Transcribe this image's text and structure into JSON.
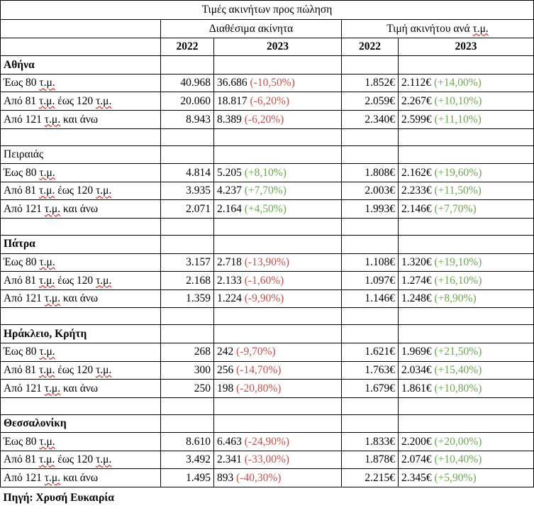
{
  "title": "Τιμές ακινήτων προς πώληση",
  "headers": {
    "available": "Διαθέσιμα ακίνητα",
    "price_per_sqm": "Τιμή ακινήτου ανά τ.μ.",
    "y2022": "2022",
    "y2023": "2023"
  },
  "colors": {
    "negative": "#c0504d",
    "positive": "#6aa84f"
  },
  "cities": [
    {
      "name": "Αθήνα",
      "bold": true,
      "rows": [
        {
          "label": "Έως 80 τ.μ.",
          "a2022": "40.968",
          "a2023": "36.686",
          "a_change": "(-10,50%)",
          "p2022": "1.852€",
          "p2023": "2.112€",
          "p_change": "(+14,00%)"
        },
        {
          "label": "Από 81 τ.μ. έως 120 τ.μ.",
          "a2022": "20.060",
          "a2023": "18.817",
          "a_change": "(-6,20%)",
          "p2022": "2.059€",
          "p2023": "2.267€",
          "p_change": "(+10,10%)"
        },
        {
          "label": "Από 121 τ.μ. και άνω",
          "a2022": "8.943",
          "a2023": "8.389",
          "a_change": "(-6,20%)",
          "p2022": "2.340€",
          "p2023": "2.599€",
          "p_change": "(+11,10%)"
        }
      ]
    },
    {
      "name": "Πειραιάς",
      "bold": false,
      "rows": [
        {
          "label": "Έως 80 τ.μ.",
          "a2022": "4.814",
          "a2023": "5.205",
          "a_change": "(+8,10%)",
          "p2022": "1.808€",
          "p2023": "2.162€",
          "p_change": "(+19,60%)"
        },
        {
          "label": "Από 81 τ.μ. έως 120 τ.μ.",
          "a2022": "3.935",
          "a2023": "4.237",
          "a_change": "(+7,70%)",
          "p2022": "2.003€",
          "p2023": "2.233€",
          "p_change": "(+11,50%)"
        },
        {
          "label": "Από 121 τ.μ. και άνω",
          "a2022": "2.071",
          "a2023": "2.164",
          "a_change": "(+4,50%)",
          "p2022": "1.993€",
          "p2023": "2.146€",
          "p_change": "(+7,70%)"
        }
      ]
    },
    {
      "name": "Πάτρα",
      "bold": true,
      "rows": [
        {
          "label": "Έως 80 τ.μ.",
          "a2022": "3.157",
          "a2023": "2.718",
          "a_change": "(-13,90%)",
          "p2022": "1.108€",
          "p2023": "1.320€",
          "p_change": "(+19,10%)"
        },
        {
          "label": "Από 81 τ.μ. έως 120 τ.μ.",
          "a2022": "2.168",
          "a2023": "2.133",
          "a_change": "(-1,60%)",
          "p2022": "1.097€",
          "p2023": "1.274€",
          "p_change": "(+16,10%)"
        },
        {
          "label": "Από 121 τ.μ. και άνω",
          "a2022": "1.359",
          "a2023": "1.224",
          "a_change": "(-9,90%)",
          "p2022": "1.146€",
          "p2023": "1.248€",
          "p_change": "(+8,90%)"
        }
      ]
    },
    {
      "name": "Ηράκλειο, Κρήτη",
      "bold": true,
      "rows": [
        {
          "label": "Έως 80 τ.μ.",
          "a2022": "268",
          "a2023": "242",
          "a_change": "(-9,70%)",
          "p2022": "1.621€",
          "p2023": "1.969€",
          "p_change": "(+21,50%)"
        },
        {
          "label": "Από 81 τ.μ. έως 120 τ.μ.",
          "a2022": "300",
          "a2023": "256",
          "a_change": "(-14,70%)",
          "p2022": "1.763€",
          "p2023": "2.034€",
          "p_change": "(+15,40%)"
        },
        {
          "label": "Από 121 τ.μ. και άνω",
          "a2022": "250",
          "a2023": "198",
          "a_change": "(-20,80%)",
          "p2022": "1.679€",
          "p2023": "1.861€",
          "p_change": "(+10,80%)"
        }
      ]
    },
    {
      "name": "Θεσσαλονίκη",
      "bold": true,
      "rows": [
        {
          "label": "Έως 80 τ.μ.",
          "a2022": "8.610",
          "a2023": "6.463",
          "a_change": "(-24,90%)",
          "p2022": "1.833€",
          "p2023": "2.200€",
          "p_change": "(+20,00%)"
        },
        {
          "label": "Από 81 τ.μ. έως 120 τ.μ.",
          "a2022": "3.492",
          "a2023": "2.341",
          "a_change": "(-33,00%)",
          "p2022": "1.878€",
          "p2023": "2.074€",
          "p_change": "(+10,40%)"
        },
        {
          "label": "Από 121 τ.μ. και άνω",
          "a2022": "1.495",
          "a2023": "893",
          "a_change": "(-40,30%)",
          "p2022": "2.215€",
          "p2023": "2.345€",
          "p_change": "(+5,90%)"
        }
      ]
    }
  ],
  "source": "Πηγή: Χρυσή Ευκαιρία"
}
